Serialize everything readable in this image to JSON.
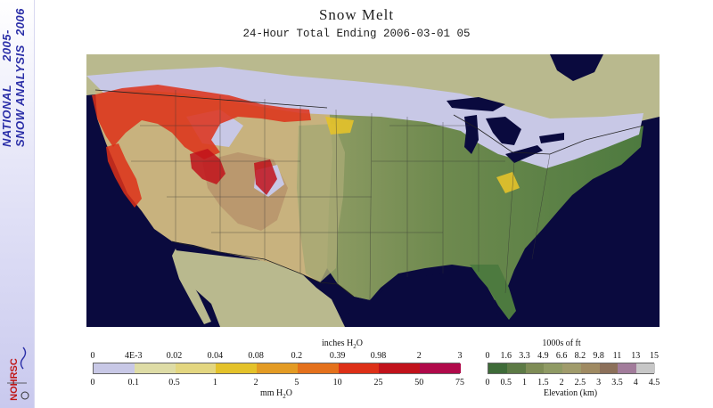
{
  "banner": {
    "line1": "NATIONAL",
    "line2": "SNOW ANALYSIS",
    "years_top": "2005-",
    "years_bottom": "2006",
    "logo": "NOHRSC"
  },
  "title": "Snow Melt",
  "subtitle": "24-Hour Total Ending 2006-03-01 05",
  "melt_legend": {
    "top_unit": "inches H",
    "top_unit_sub": "2",
    "top_unit_end": "O",
    "top_labels": [
      "0",
      "4E-3",
      "0.02",
      "0.04",
      "0.08",
      "0.2",
      "0.39",
      "0.98",
      "2",
      "3"
    ],
    "bottom_labels": [
      "0",
      "0.1",
      "0.5",
      "1",
      "2",
      "5",
      "10",
      "25",
      "50",
      "75"
    ],
    "bottom_unit": "mm H",
    "bottom_unit_sub": "2",
    "bottom_unit_end": "O",
    "colors": [
      "#c8c8e6",
      "#dedca6",
      "#e3d680",
      "#e4c22a",
      "#e39b24",
      "#e4711c",
      "#dd3017",
      "#c1121b",
      "#b00a4a"
    ]
  },
  "elevation_legend": {
    "top_unit": "1000s of ft",
    "top_labels": [
      "0",
      "1.6",
      "3.3",
      "4.9",
      "6.6",
      "8.2",
      "9.8",
      "11",
      "13",
      "15"
    ],
    "bottom_labels": [
      "0",
      "0.5",
      "1",
      "1.5",
      "2",
      "2.5",
      "3",
      "3.5",
      "4",
      "4.5"
    ],
    "bottom_unit": "Elevation (km)",
    "colors": [
      "#3e6b38",
      "#5c7a45",
      "#7e8c56",
      "#8f9a64",
      "#a09b6b",
      "#9f8a62",
      "#8c705a",
      "#a27c9b",
      "#c7c7c7"
    ]
  }
}
